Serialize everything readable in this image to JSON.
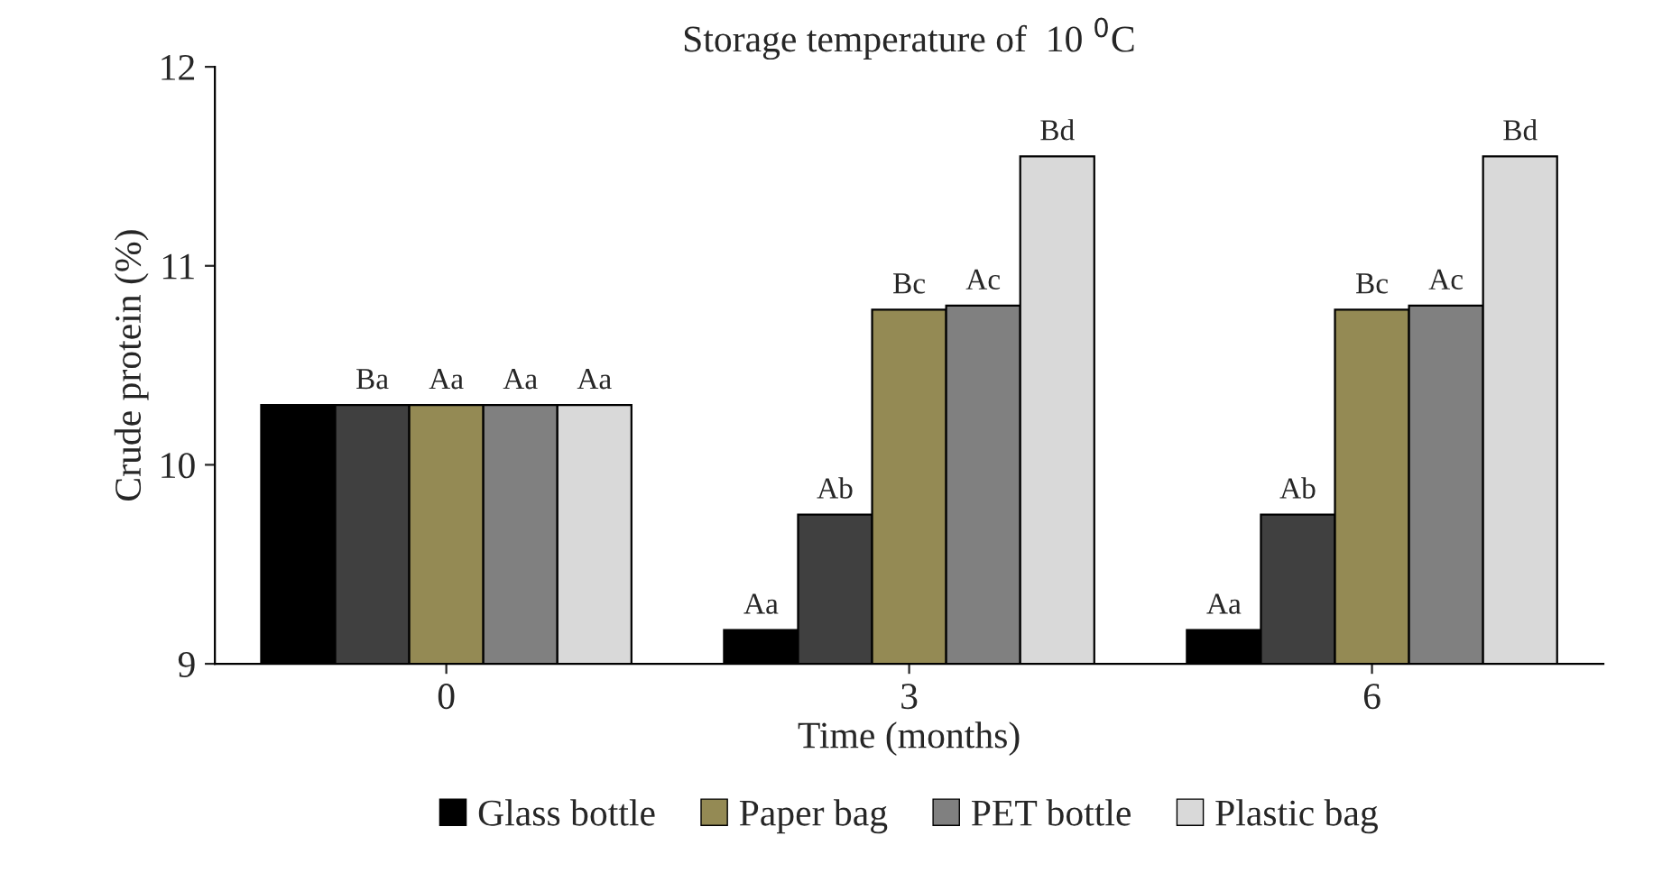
{
  "chart_data": {
    "type": "bar",
    "title": "Storage temperature of  10 $^{0}$C",
    "xlabel": "Time (months)",
    "ylabel": "Crude protein (%)",
    "categories": [
      "0",
      "3",
      "6"
    ],
    "series": [
      {
        "name": "Glass bottle",
        "color": "#000000",
        "values": [
          10.3,
          9.17,
          9.17
        ],
        "value_labels": [
          null,
          "Aa",
          "Aa"
        ]
      },
      {
        "color": "#404040",
        "values": [
          10.3,
          9.75,
          9.75
        ],
        "value_labels": [
          "Ba",
          "Ab",
          "Ab"
        ]
      },
      {
        "name": "Paper bag",
        "color": "#948a54",
        "values": [
          10.3,
          10.78,
          10.78
        ],
        "value_labels": [
          "Aa",
          "Bc",
          "Bc"
        ]
      },
      {
        "name": "PET bottle",
        "color": "#808080",
        "values": [
          10.3,
          10.8,
          10.8
        ],
        "value_labels": [
          "Aa",
          "Ac",
          "Ac"
        ]
      },
      {
        "name": "Plastic bag",
        "color": "#d9d9d9",
        "values": [
          10.3,
          11.55,
          11.55
        ],
        "value_labels": [
          "Aa",
          "Bd",
          "Bd"
        ]
      }
    ],
    "ylim": [
      9,
      12
    ],
    "yticks": [
      9,
      10,
      11,
      12
    ],
    "grid": false,
    "legend": "bottom"
  }
}
